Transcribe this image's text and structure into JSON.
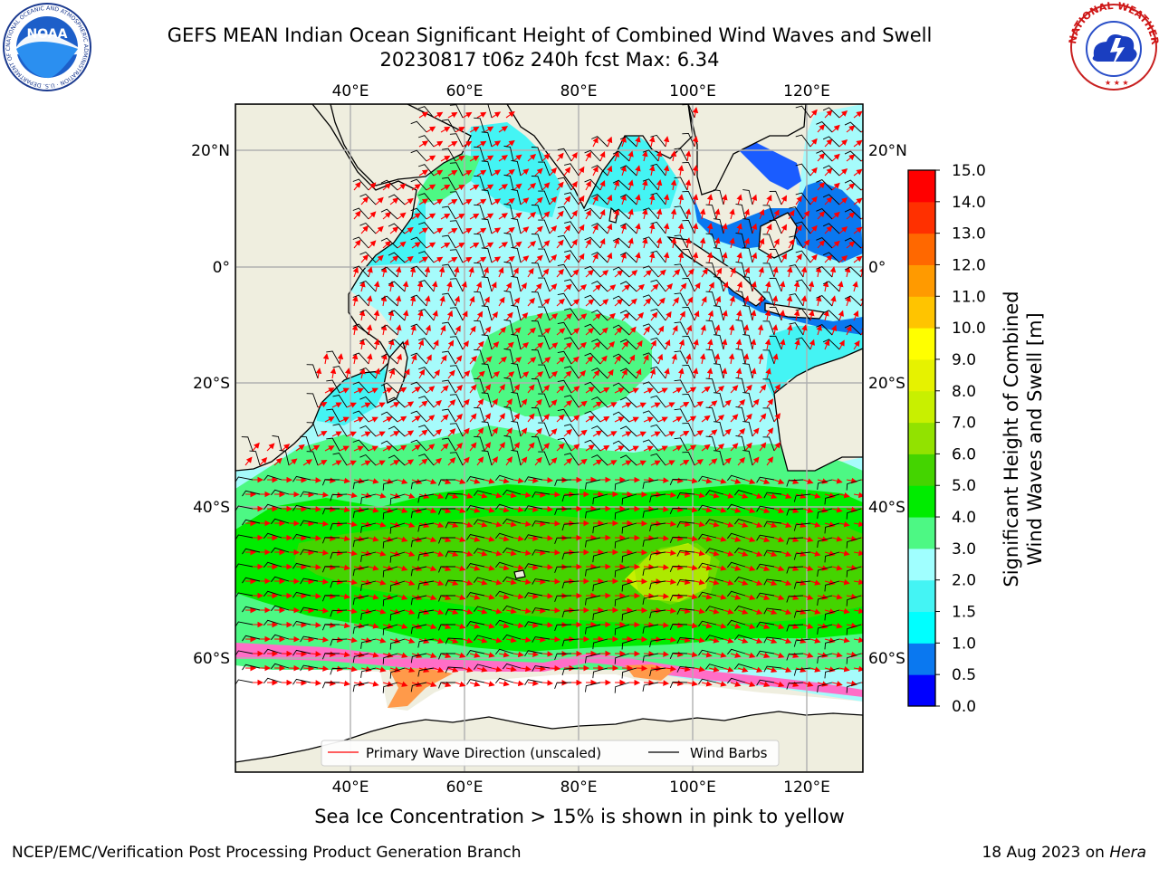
{
  "title": {
    "line1": "GEFS MEAN Indian Ocean Significant Height of Combined Wind Waves and Swell",
    "line2": "20230817 t06z 240h fcst   Max: 6.34"
  },
  "map": {
    "lon_ticks_top": [
      "40°E",
      "60°E",
      "80°E",
      "100°E",
      "120°E"
    ],
    "lon_ticks_bottom": [
      "40°E",
      "60°E",
      "80°E",
      "100°E",
      "120°E"
    ],
    "lat_ticks_left": [
      "20°N",
      "0°",
      "20°S",
      "40°S",
      "60°S"
    ],
    "lat_ticks_right": [
      "20°N",
      "0°",
      "20°S",
      "40°S",
      "60°S"
    ],
    "legend": {
      "wave_label": "Primary Wave Direction (unscaled)",
      "barb_label": "Wind Barbs"
    },
    "grid": true
  },
  "colorbar": {
    "label_line1": "Significant Height of Combined",
    "label_line2": "Wind Waves and Swell [m]",
    "ticks": [
      "0.0",
      "0.5",
      "1.0",
      "1.5",
      "2.0",
      "3.0",
      "4.0",
      "5.0",
      "6.0",
      "7.0",
      "8.0",
      "9.0",
      "10.0",
      "11.0",
      "12.0",
      "13.0",
      "14.0",
      "15.0"
    ],
    "colors": [
      "#0000ff",
      "#0a78f0",
      "#00ffff",
      "#44f4f4",
      "#a0ffff",
      "#4df884",
      "#00ec00",
      "#44d400",
      "#92e200",
      "#c8f000",
      "#e6f200",
      "#ffff00",
      "#ffc400",
      "#ff9a00",
      "#ff6800",
      "#ff3000",
      "#ff0000"
    ]
  },
  "logos": {
    "noaa_text": "NOAA",
    "noaa_ring": "NATIONAL OCEANIC AND ATMOSPHERIC ADMINISTRATION · U.S. DEPARTMENT OF COMMERCE ·",
    "nws_ring": "NATIONAL WEATHER SERVICE"
  },
  "subtitle": "Sea Ice Concentration > 15% is shown in pink to yellow",
  "footer": {
    "left": "NCEP/EMC/Verification Post Processing Product Generation Branch",
    "right_prefix": "18 Aug 2023 on ",
    "right_host": "Hera"
  }
}
